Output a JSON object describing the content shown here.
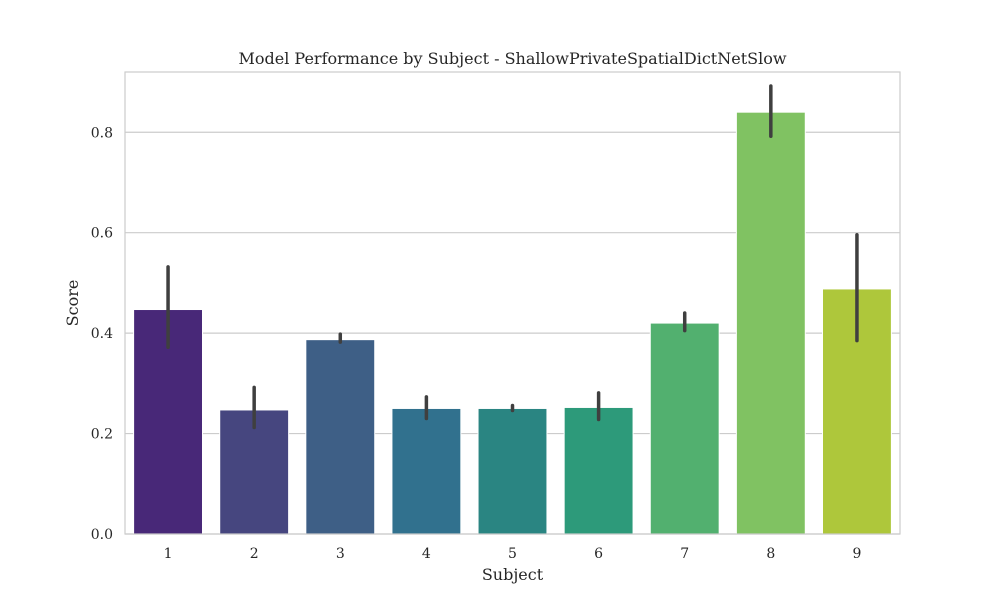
{
  "chart_data": {
    "type": "bar",
    "title": "Model Performance by Subject - ShallowPrivateSpatialDictNetSlow",
    "xlabel": "Subject",
    "ylabel": "Score",
    "categories": [
      "1",
      "2",
      "3",
      "4",
      "5",
      "6",
      "7",
      "8",
      "9"
    ],
    "values": [
      0.447,
      0.247,
      0.387,
      0.25,
      0.25,
      0.252,
      0.42,
      0.84,
      0.488
    ],
    "error_low": [
      0.372,
      0.212,
      0.382,
      0.23,
      0.246,
      0.228,
      0.405,
      0.792,
      0.385
    ],
    "error_high": [
      0.532,
      0.292,
      0.398,
      0.273,
      0.256,
      0.281,
      0.44,
      0.892,
      0.596
    ],
    "colors": [
      "#482878",
      "#46467f",
      "#3e5f86",
      "#31718e",
      "#2a8582",
      "#2d9a7a",
      "#52b06f",
      "#80c262",
      "#aec73b"
    ],
    "ylim": [
      0,
      0.92
    ],
    "yticks": [
      0.0,
      0.2,
      0.4,
      0.6,
      0.8
    ],
    "ytick_labels": [
      "0.0",
      "0.2",
      "0.4",
      "0.6",
      "0.8"
    ],
    "grid": true,
    "legend": "none"
  }
}
